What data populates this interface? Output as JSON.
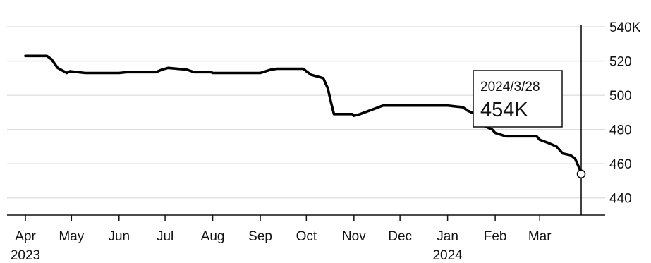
{
  "chart_data": {
    "type": "line",
    "title": "",
    "xlabel": "",
    "ylabel": "",
    "ylim": [
      430,
      540
    ],
    "y_ticks": [
      {
        "value": 540,
        "label": "540K"
      },
      {
        "value": 520,
        "label": "520"
      },
      {
        "value": 500,
        "label": "500"
      },
      {
        "value": 480,
        "label": "480"
      },
      {
        "value": 460,
        "label": "460"
      },
      {
        "value": 440,
        "label": "440"
      }
    ],
    "x_start": "2023-04-01",
    "x_end": "2024-03-28",
    "x_ticks": [
      {
        "date": "2023-04-01",
        "label": "Apr",
        "year": "2023"
      },
      {
        "date": "2023-05-01",
        "label": "May",
        "year": ""
      },
      {
        "date": "2023-06-01",
        "label": "Jun",
        "year": ""
      },
      {
        "date": "2023-07-01",
        "label": "Jul",
        "year": ""
      },
      {
        "date": "2023-08-01",
        "label": "Aug",
        "year": ""
      },
      {
        "date": "2023-09-01",
        "label": "Sep",
        "year": ""
      },
      {
        "date": "2023-10-01",
        "label": "Oct",
        "year": ""
      },
      {
        "date": "2023-11-01",
        "label": "Nov",
        "year": ""
      },
      {
        "date": "2023-12-01",
        "label": "Dec",
        "year": ""
      },
      {
        "date": "2024-01-01",
        "label": "Jan",
        "year": "2024"
      },
      {
        "date": "2024-02-01",
        "label": "Feb",
        "year": ""
      },
      {
        "date": "2024-03-01",
        "label": "Mar",
        "year": ""
      }
    ],
    "grid": true,
    "series": [
      {
        "name": "",
        "color": "#000000",
        "points": [
          [
            "2023-04-01",
            523
          ],
          [
            "2023-04-15",
            523
          ],
          [
            "2023-04-18",
            521
          ],
          [
            "2023-04-22",
            516
          ],
          [
            "2023-04-28",
            513
          ],
          [
            "2023-04-30",
            514
          ],
          [
            "2023-05-10",
            513
          ],
          [
            "2023-06-01",
            513
          ],
          [
            "2023-06-06",
            513.5
          ],
          [
            "2023-06-25",
            513.5
          ],
          [
            "2023-06-29",
            515
          ],
          [
            "2023-07-03",
            516
          ],
          [
            "2023-07-15",
            515
          ],
          [
            "2023-07-20",
            513.5
          ],
          [
            "2023-07-31",
            513.5
          ],
          [
            "2023-08-01",
            513
          ],
          [
            "2023-08-15",
            513
          ],
          [
            "2023-09-01",
            513
          ],
          [
            "2023-09-08",
            515
          ],
          [
            "2023-09-12",
            515.5
          ],
          [
            "2023-09-29",
            515.5
          ],
          [
            "2023-10-01",
            514
          ],
          [
            "2023-10-04",
            512
          ],
          [
            "2023-10-12",
            510
          ],
          [
            "2023-10-15",
            504
          ],
          [
            "2023-10-17",
            496
          ],
          [
            "2023-10-19",
            489
          ],
          [
            "2023-10-31",
            489
          ],
          [
            "2023-11-01",
            488
          ],
          [
            "2023-11-05",
            489
          ],
          [
            "2023-11-20",
            494
          ],
          [
            "2023-12-01",
            494
          ],
          [
            "2024-01-01",
            494
          ],
          [
            "2024-01-06",
            493.5
          ],
          [
            "2024-01-11",
            493
          ],
          [
            "2024-01-14",
            491
          ],
          [
            "2024-01-19",
            489
          ],
          [
            "2024-01-20",
            482
          ],
          [
            "2024-01-22",
            485
          ],
          [
            "2024-01-25",
            482
          ],
          [
            "2024-01-30",
            480
          ],
          [
            "2024-02-01",
            478
          ],
          [
            "2024-02-08",
            476
          ],
          [
            "2024-02-28",
            476
          ],
          [
            "2024-03-01",
            474
          ],
          [
            "2024-03-07",
            472
          ],
          [
            "2024-03-12",
            470
          ],
          [
            "2024-03-16",
            466
          ],
          [
            "2024-03-21",
            465
          ],
          [
            "2024-03-24",
            463
          ],
          [
            "2024-03-27",
            457
          ],
          [
            "2024-03-28",
            454
          ]
        ]
      }
    ],
    "annotation": {
      "date": "2024-03-28",
      "value": 454,
      "date_label": "2024/3/28",
      "value_label": "454K"
    }
  }
}
